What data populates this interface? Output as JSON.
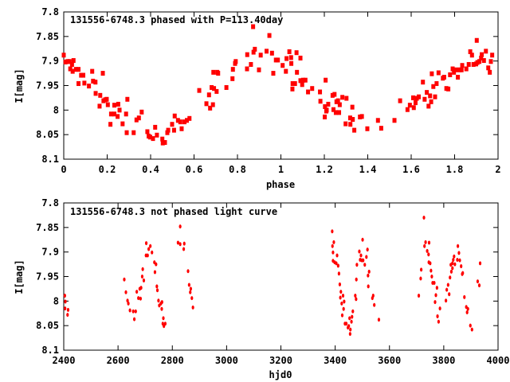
{
  "chart_data": [
    {
      "type": "scatter",
      "title": "131556-6748.3 phased with P=113.40day",
      "xlabel": "phase",
      "ylabel": "I[mag]",
      "xlim": [
        0,
        2
      ],
      "ylim": [
        8.1,
        7.8
      ],
      "y_inverted": true,
      "xticks": [
        "0",
        "0.2",
        "0.4",
        "0.6",
        "0.8",
        "1",
        "1.2",
        "1.4",
        "1.6",
        "1.8",
        "2"
      ],
      "yticks": [
        "7.8",
        "7.85",
        "7.9",
        "7.95",
        "8",
        "8.05",
        "8.1"
      ],
      "marker_color": "#ff0000",
      "marker": "square",
      "points": [
        [
          0.0,
          7.888
        ],
        [
          0.008,
          7.902
        ],
        [
          0.018,
          7.901
        ],
        [
          0.027,
          7.901
        ],
        [
          0.03,
          7.916
        ],
        [
          0.038,
          7.907
        ],
        [
          0.041,
          7.921
        ],
        [
          0.045,
          7.899
        ],
        [
          0.056,
          7.917
        ],
        [
          0.068,
          7.917
        ],
        [
          0.068,
          7.946
        ],
        [
          0.08,
          7.929
        ],
        [
          0.09,
          7.929
        ],
        [
          0.095,
          7.945
        ],
        [
          0.116,
          7.951
        ],
        [
          0.131,
          7.921
        ],
        [
          0.135,
          7.941
        ],
        [
          0.146,
          7.943
        ],
        [
          0.147,
          7.966
        ],
        [
          0.165,
          7.992
        ],
        [
          0.168,
          7.97
        ],
        [
          0.18,
          7.925
        ],
        [
          0.183,
          7.981
        ],
        [
          0.191,
          7.979
        ],
        [
          0.198,
          7.978
        ],
        [
          0.203,
          7.989
        ],
        [
          0.215,
          8.029
        ],
        [
          0.218,
          8.008
        ],
        [
          0.233,
          7.99
        ],
        [
          0.233,
          8.008
        ],
        [
          0.248,
          8.013
        ],
        [
          0.251,
          7.988
        ],
        [
          0.257,
          8.0
        ],
        [
          0.271,
          8.028
        ],
        [
          0.287,
          8.008
        ],
        [
          0.293,
          7.978
        ],
        [
          0.29,
          8.046
        ],
        [
          0.322,
          8.046
        ],
        [
          0.335,
          8.02
        ],
        [
          0.346,
          8.016
        ],
        [
          0.359,
          8.004
        ],
        [
          0.385,
          8.044
        ],
        [
          0.391,
          8.053
        ],
        [
          0.398,
          8.055
        ],
        [
          0.411,
          8.058
        ],
        [
          0.421,
          8.035
        ],
        [
          0.429,
          8.051
        ],
        [
          0.454,
          8.059
        ],
        [
          0.456,
          8.067
        ],
        [
          0.466,
          8.066
        ],
        [
          0.477,
          8.046
        ],
        [
          0.481,
          8.041
        ],
        [
          0.499,
          8.029
        ],
        [
          0.508,
          8.041
        ],
        [
          0.511,
          8.012
        ],
        [
          0.526,
          8.021
        ],
        [
          0.537,
          8.024
        ],
        [
          0.543,
          8.038
        ],
        [
          0.556,
          8.024
        ],
        [
          0.567,
          8.021
        ],
        [
          0.579,
          8.017
        ],
        [
          0.624,
          7.96
        ],
        [
          0.657,
          7.987
        ],
        [
          0.669,
          7.969
        ],
        [
          0.674,
          7.996
        ],
        [
          0.681,
          7.954
        ],
        [
          0.687,
          7.989
        ],
        [
          0.689,
          7.923
        ],
        [
          0.692,
          7.956
        ],
        [
          0.704,
          7.962
        ],
        [
          0.707,
          7.923
        ],
        [
          0.711,
          7.925
        ],
        [
          0.749,
          7.954
        ],
        [
          0.777,
          7.936
        ],
        [
          0.779,
          7.917
        ],
        [
          0.789,
          7.905
        ],
        [
          0.792,
          7.901
        ],
        [
          0.844,
          7.916
        ],
        [
          0.845,
          7.887
        ],
        [
          0.862,
          7.907
        ],
        [
          0.872,
          7.83
        ],
        [
          0.874,
          7.882
        ],
        [
          0.88,
          7.876
        ],
        [
          0.899,
          7.918
        ],
        [
          0.907,
          7.888
        ],
        [
          0.934,
          7.88
        ],
        [
          0.947,
          7.848
        ],
        [
          0.959,
          7.884
        ],
        [
          0.965,
          7.925
        ],
        [
          0.977,
          7.898
        ],
        [
          0.986,
          7.898
        ],
        [
          1.008,
          7.909
        ],
        [
          1.023,
          7.921
        ],
        [
          1.026,
          7.895
        ],
        [
          1.039,
          7.881
        ],
        [
          1.047,
          7.893
        ],
        [
          1.048,
          7.905
        ],
        [
          1.053,
          7.957
        ],
        [
          1.054,
          7.946
        ],
        [
          1.065,
          7.946
        ],
        [
          1.072,
          7.883
        ],
        [
          1.074,
          7.923
        ],
        [
          1.09,
          7.894
        ],
        [
          1.09,
          7.94
        ],
        [
          1.098,
          7.948
        ],
        [
          1.102,
          7.939
        ],
        [
          1.113,
          7.939
        ],
        [
          1.125,
          7.963
        ],
        [
          1.144,
          7.956
        ],
        [
          1.18,
          7.963
        ],
        [
          1.182,
          7.982
        ],
        [
          1.202,
          8.014
        ],
        [
          1.203,
          7.993
        ],
        [
          1.206,
          7.939
        ],
        [
          1.209,
          8.002
        ],
        [
          1.211,
          8.0
        ],
        [
          1.218,
          7.988
        ],
        [
          1.238,
          7.97
        ],
        [
          1.242,
          7.999
        ],
        [
          1.247,
          7.968
        ],
        [
          1.253,
          8.005
        ],
        [
          1.256,
          7.983
        ],
        [
          1.263,
          7.981
        ],
        [
          1.268,
          8.005
        ],
        [
          1.271,
          7.989
        ],
        [
          1.283,
          7.974
        ],
        [
          1.298,
          8.028
        ],
        [
          1.302,
          7.976
        ],
        [
          1.319,
          8.016
        ],
        [
          1.32,
          8.029
        ],
        [
          1.329,
          7.994
        ],
        [
          1.331,
          8.019
        ],
        [
          1.338,
          8.041
        ],
        [
          1.364,
          8.014
        ],
        [
          1.373,
          8.013
        ],
        [
          1.398,
          8.038
        ],
        [
          1.447,
          8.021
        ],
        [
          1.462,
          8.037
        ],
        [
          1.523,
          8.021
        ],
        [
          1.549,
          7.981
        ],
        [
          1.583,
          7.999
        ],
        [
          1.594,
          7.99
        ],
        [
          1.609,
          7.975
        ],
        [
          1.612,
          7.995
        ],
        [
          1.62,
          7.985
        ],
        [
          1.626,
          7.976
        ],
        [
          1.635,
          7.973
        ],
        [
          1.654,
          7.943
        ],
        [
          1.662,
          7.978
        ],
        [
          1.672,
          7.964
        ],
        [
          1.68,
          7.992
        ],
        [
          1.687,
          7.971
        ],
        [
          1.692,
          7.983
        ],
        [
          1.695,
          7.926
        ],
        [
          1.702,
          7.952
        ],
        [
          1.71,
          7.973
        ],
        [
          1.717,
          7.946
        ],
        [
          1.726,
          7.924
        ],
        [
          1.746,
          7.935
        ],
        [
          1.752,
          7.933
        ],
        [
          1.762,
          7.956
        ],
        [
          1.771,
          7.957
        ],
        [
          1.779,
          7.928
        ],
        [
          1.791,
          7.916
        ],
        [
          1.797,
          7.923
        ],
        [
          1.808,
          7.918
        ],
        [
          1.815,
          7.933
        ],
        [
          1.824,
          7.918
        ],
        [
          1.832,
          7.918
        ],
        [
          1.835,
          7.909
        ],
        [
          1.854,
          7.916
        ],
        [
          1.865,
          7.907
        ],
        [
          1.872,
          7.881
        ],
        [
          1.88,
          7.888
        ],
        [
          1.887,
          7.907
        ],
        [
          1.899,
          7.906
        ],
        [
          1.902,
          7.858
        ],
        [
          1.905,
          7.903
        ],
        [
          1.914,
          7.901
        ],
        [
          1.922,
          7.894
        ],
        [
          1.925,
          7.887
        ],
        [
          1.935,
          7.899
        ],
        [
          1.944,
          7.88
        ],
        [
          1.955,
          7.914
        ],
        [
          1.962,
          7.923
        ],
        [
          1.967,
          7.901
        ],
        [
          1.973,
          7.888
        ]
      ]
    },
    {
      "type": "scatter",
      "title": "131556-6748.3 not phased light curve",
      "xlabel": "hjd0",
      "ylabel": "I[mag]",
      "xlim": [
        2400,
        4000
      ],
      "ylim": [
        8.1,
        7.8
      ],
      "y_inverted": true,
      "xticks": [
        "2400",
        "2600",
        "2800",
        "3000",
        "3200",
        "3400",
        "3600",
        "3800",
        "4000"
      ],
      "yticks": [
        "7.8",
        "7.85",
        "7.9",
        "7.95",
        "8",
        "8.05",
        "8.1"
      ],
      "marker_color": "#ff0000",
      "marker": "dot",
      "points": [
        [
          2404,
          7.989
        ],
        [
          2406,
          8.001
        ],
        [
          2405,
          8.015
        ],
        [
          2416,
          8.018
        ],
        [
          2414,
          8.028
        ],
        [
          2623,
          7.956
        ],
        [
          2629,
          7.982
        ],
        [
          2635,
          7.999
        ],
        [
          2638,
          8.005
        ],
        [
          2644,
          8.019
        ],
        [
          2656,
          8.021
        ],
        [
          2660,
          8.037
        ],
        [
          2665,
          8.021
        ],
        [
          2669,
          7.981
        ],
        [
          2675,
          7.994
        ],
        [
          2680,
          7.975
        ],
        [
          2683,
          7.995
        ],
        [
          2685,
          7.973
        ],
        [
          2689,
          7.95
        ],
        [
          2691,
          7.935
        ],
        [
          2695,
          7.958
        ],
        [
          2703,
          7.907
        ],
        [
          2704,
          7.882
        ],
        [
          2709,
          7.907
        ],
        [
          2713,
          7.894
        ],
        [
          2719,
          7.888
        ],
        [
          2725,
          7.901
        ],
        [
          2734,
          7.921
        ],
        [
          2736,
          7.941
        ],
        [
          2740,
          7.925
        ],
        [
          2743,
          7.97
        ],
        [
          2745,
          7.978
        ],
        [
          2749,
          7.999
        ],
        [
          2752,
          8.009
        ],
        [
          2758,
          8.005
        ],
        [
          2761,
          8.016
        ],
        [
          2762,
          8.002
        ],
        [
          2765,
          8.046
        ],
        [
          2767,
          8.035
        ],
        [
          2769,
          8.051
        ],
        [
          2774,
          8.046
        ],
        [
          2821,
          7.881
        ],
        [
          2829,
          7.848
        ],
        [
          2829,
          7.884
        ],
        [
          2842,
          7.894
        ],
        [
          2844,
          7.883
        ],
        [
          2858,
          7.939
        ],
        [
          2862,
          7.967
        ],
        [
          2866,
          7.982
        ],
        [
          2868,
          7.975
        ],
        [
          2872,
          7.994
        ],
        [
          2876,
          8.013
        ],
        [
          3389,
          7.858
        ],
        [
          3390,
          7.888
        ],
        [
          3392,
          7.901
        ],
        [
          3392,
          7.918
        ],
        [
          3395,
          7.88
        ],
        [
          3398,
          7.921
        ],
        [
          3404,
          7.923
        ],
        [
          3407,
          7.907
        ],
        [
          3411,
          7.928
        ],
        [
          3414,
          7.944
        ],
        [
          3417,
          7.966
        ],
        [
          3419,
          7.993
        ],
        [
          3421,
          7.981
        ],
        [
          3424,
          8.005
        ],
        [
          3426,
          8.029
        ],
        [
          3429,
          7.989
        ],
        [
          3431,
          8.016
        ],
        [
          3433,
          8.001
        ],
        [
          3436,
          8.046
        ],
        [
          3441,
          8.046
        ],
        [
          3447,
          8.054
        ],
        [
          3450,
          8.051
        ],
        [
          3453,
          8.035
        ],
        [
          3455,
          8.067
        ],
        [
          3456,
          8.058
        ],
        [
          3460,
          8.042
        ],
        [
          3462,
          8.032
        ],
        [
          3465,
          8.021
        ],
        [
          3474,
          7.989
        ],
        [
          3477,
          7.996
        ],
        [
          3478,
          7.956
        ],
        [
          3480,
          7.926
        ],
        [
          3489,
          7.899
        ],
        [
          3492,
          7.916
        ],
        [
          3495,
          7.907
        ],
        [
          3498,
          7.917
        ],
        [
          3501,
          7.875
        ],
        [
          3503,
          7.917
        ],
        [
          3509,
          7.926
        ],
        [
          3515,
          7.91
        ],
        [
          3519,
          7.895
        ],
        [
          3521,
          7.948
        ],
        [
          3522,
          7.97
        ],
        [
          3525,
          7.94
        ],
        [
          3537,
          7.994
        ],
        [
          3540,
          7.989
        ],
        [
          3544,
          8.008
        ],
        [
          3561,
          8.038
        ],
        [
          3708,
          7.989
        ],
        [
          3715,
          7.954
        ],
        [
          3717,
          7.936
        ],
        [
          3727,
          7.83
        ],
        [
          3729,
          7.888
        ],
        [
          3733,
          7.88
        ],
        [
          3739,
          7.898
        ],
        [
          3744,
          7.905
        ],
        [
          3746,
          7.881
        ],
        [
          3745,
          7.921
        ],
        [
          3750,
          7.923
        ],
        [
          3753,
          7.938
        ],
        [
          3756,
          7.95
        ],
        [
          3759,
          7.963
        ],
        [
          3765,
          7.963
        ],
        [
          3768,
          8.002
        ],
        [
          3771,
          7.988
        ],
        [
          3775,
          7.973
        ],
        [
          3777,
          8.031
        ],
        [
          3781,
          8.042
        ],
        [
          3786,
          8.015
        ],
        [
          3808,
          7.999
        ],
        [
          3811,
          7.977
        ],
        [
          3816,
          7.967
        ],
        [
          3820,
          7.986
        ],
        [
          3823,
          7.952
        ],
        [
          3826,
          7.926
        ],
        [
          3828,
          7.94
        ],
        [
          3832,
          7.923
        ],
        [
          3832,
          7.933
        ],
        [
          3835,
          7.916
        ],
        [
          3838,
          7.909
        ],
        [
          3841,
          7.925
        ],
        [
          3850,
          7.916
        ],
        [
          3852,
          7.888
        ],
        [
          3856,
          7.902
        ],
        [
          3859,
          7.917
        ],
        [
          3864,
          7.929
        ],
        [
          3868,
          7.945
        ],
        [
          3870,
          7.943
        ],
        [
          3876,
          7.992
        ],
        [
          3883,
          8.012
        ],
        [
          3886,
          8.023
        ],
        [
          3889,
          8.016
        ],
        [
          3898,
          8.05
        ],
        [
          3904,
          8.058
        ],
        [
          3925,
          7.96
        ],
        [
          3931,
          7.968
        ],
        [
          3934,
          7.923
        ]
      ]
    }
  ]
}
